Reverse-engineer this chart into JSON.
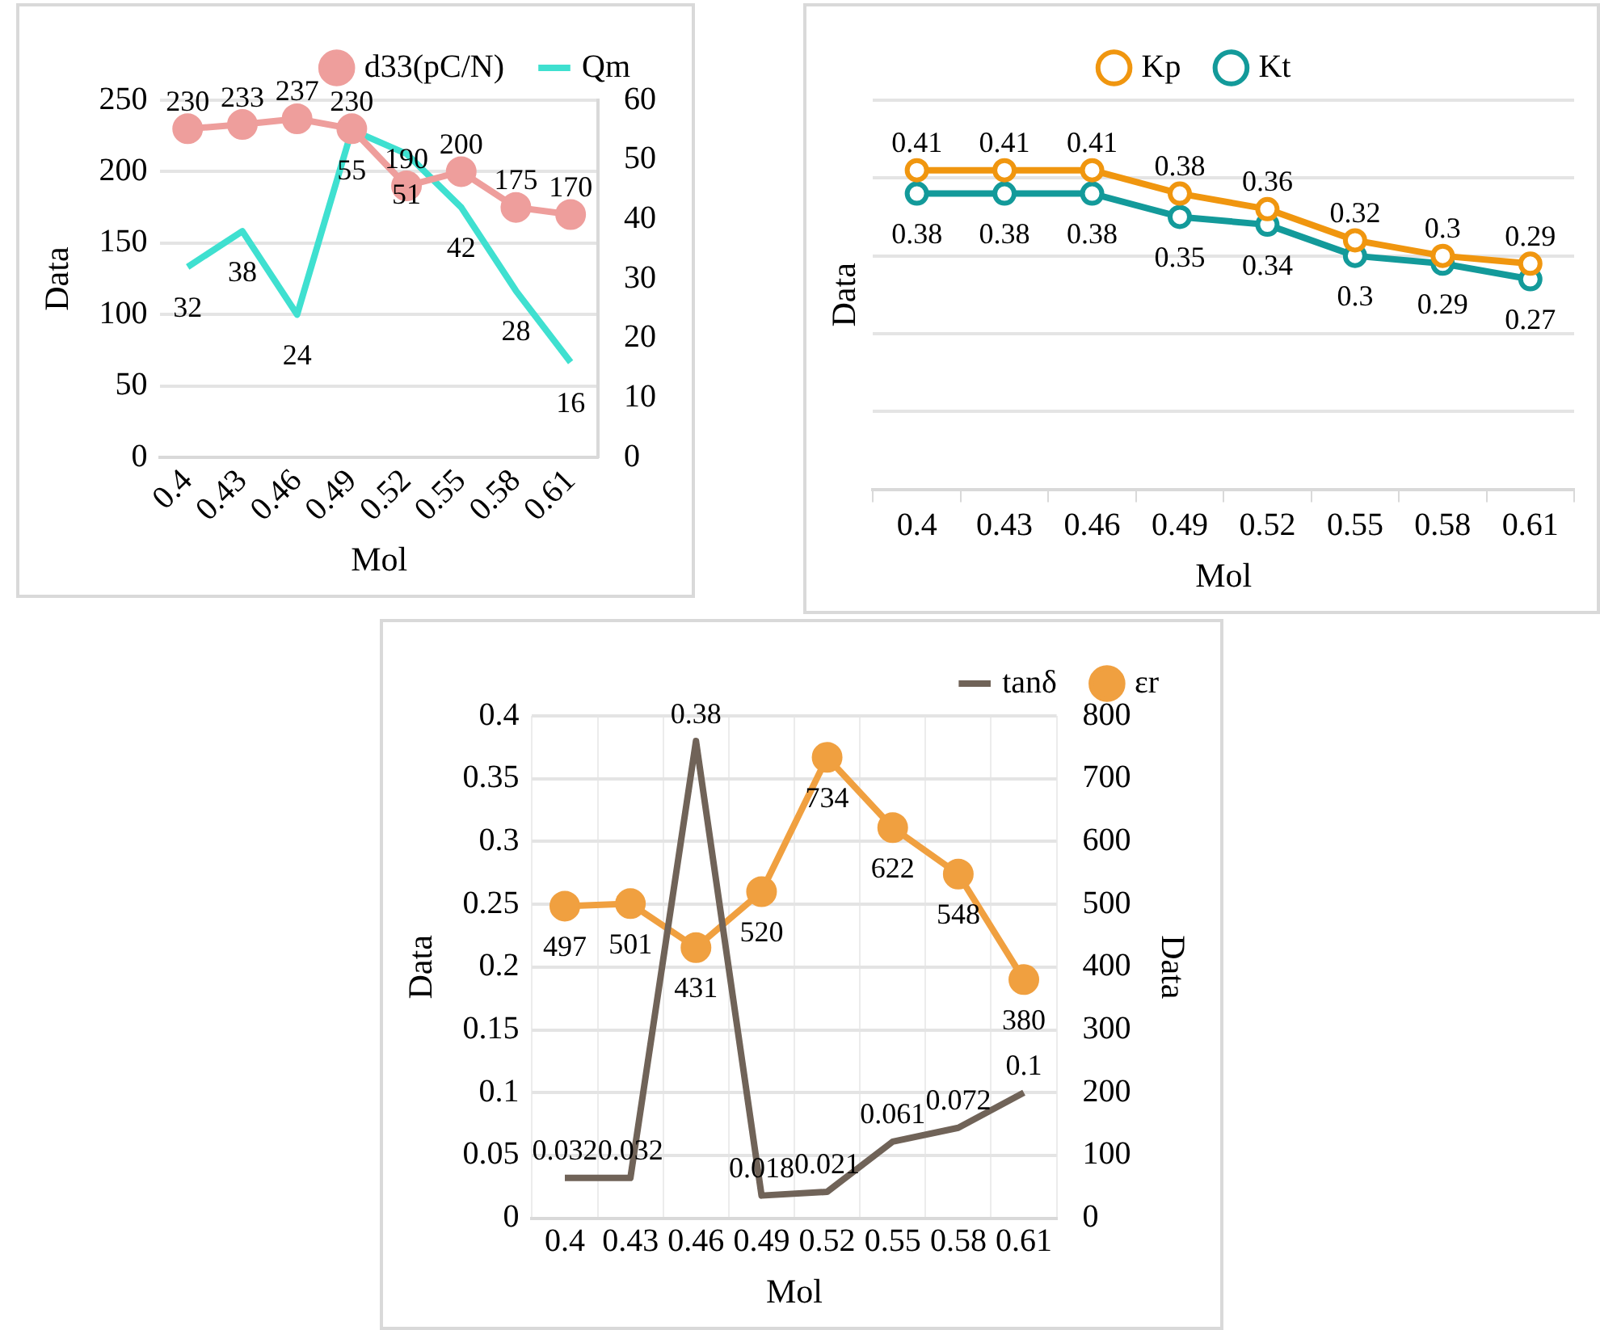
{
  "chart_data": [
    {
      "type": "line",
      "xlabel": "Mol",
      "ylabel": "Data",
      "categories": [
        "0.4",
        "0.43",
        "0.46",
        "0.49",
        "0.52",
        "0.55",
        "0.58",
        "0.61"
      ],
      "series": [
        {
          "name": "d33(pC/N)",
          "color": "#ee9e9c",
          "marker": "circle",
          "values": [
            230,
            233,
            237,
            230,
            190,
            200,
            175,
            170
          ]
        },
        {
          "name": "Qm",
          "color": "#3fe0d0",
          "marker": "none",
          "axis": "y2",
          "values": [
            32,
            38,
            24,
            55,
            51,
            42,
            28,
            16
          ]
        }
      ],
      "ylim": [
        0,
        250
      ],
      "yticks": [
        0,
        50,
        100,
        150,
        200,
        250
      ],
      "y2lim": [
        0,
        60
      ],
      "y2ticks": [
        0,
        10,
        20,
        30,
        40,
        50,
        60
      ],
      "grid": "y",
      "legend": "top",
      "data_labels": true
    },
    {
      "type": "line",
      "xlabel": "Mol",
      "ylabel": "Data",
      "categories": [
        "0.4",
        "0.43",
        "0.46",
        "0.49",
        "0.52",
        "0.55",
        "0.58",
        "0.61"
      ],
      "series": [
        {
          "name": "Kp",
          "color": "#f0960f",
          "marker": "circle",
          "values": [
            0.41,
            0.41,
            0.41,
            0.38,
            0.36,
            0.32,
            0.3,
            0.29
          ]
        },
        {
          "name": "Kt",
          "color": "#139a9a",
          "marker": "circle",
          "values": [
            0.38,
            0.38,
            0.38,
            0.35,
            0.34,
            0.3,
            0.29,
            0.27
          ]
        }
      ],
      "ylim": [
        0,
        0.5
      ],
      "yticks": [
        {
          "value": 0,
          "label": null
        },
        {
          "value": 0.1,
          "label": null
        },
        {
          "value": 0.2,
          "label": null
        },
        {
          "value": 0.3,
          "label": null
        },
        {
          "value": 0.4,
          "label": null
        },
        {
          "value": 0.5,
          "label": null
        }
      ],
      "tick_labels": "x",
      "grid": "y",
      "legend": "top",
      "data_labels": true
    },
    {
      "type": "line",
      "xlabel": "Mol",
      "ylabel": "Data",
      "y2label": "Data",
      "categories": [
        "0.4",
        "0.43",
        "0.46",
        "0.49",
        "0.52",
        "0.55",
        "0.58",
        "0.61"
      ],
      "series": [
        {
          "name": "tanδ",
          "color": "#706358",
          "marker": "none",
          "values": [
            0.032,
            0.032,
            0.38,
            0.018,
            0.021,
            0.061,
            0.072,
            0.1
          ]
        },
        {
          "name": "εr",
          "color": "#f0a040",
          "marker": "circle",
          "axis": "y2",
          "values": [
            497,
            501,
            431,
            520,
            734,
            622,
            548,
            380
          ]
        }
      ],
      "ylim": [
        0,
        0.4
      ],
      "yticks": [
        0,
        0.05,
        0.1,
        0.15,
        0.2,
        0.25,
        0.3,
        0.35,
        0.4
      ],
      "y2lim": [
        0,
        800
      ],
      "y2ticks": [
        0,
        100,
        200,
        300,
        400,
        500,
        600,
        700,
        800
      ],
      "grid": true,
      "legend": "top right",
      "data_labels": true
    }
  ]
}
